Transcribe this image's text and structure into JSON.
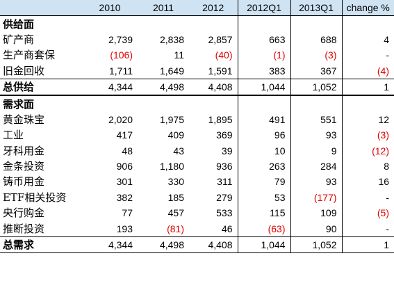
{
  "headers": [
    "",
    "2010",
    "2011",
    "2012",
    "2012Q1",
    "2013Q1",
    "change %"
  ],
  "supply_section": "供给面",
  "supply_rows": [
    {
      "label": "矿产商",
      "v": [
        "2,739",
        "2,838",
        "2,857",
        "663",
        "688",
        "4"
      ],
      "neg": [
        false,
        false,
        false,
        false,
        false,
        false
      ]
    },
    {
      "label": "生产商套保",
      "v": [
        "(106)",
        "11",
        "(40)",
        "(1)",
        "(3)",
        "-"
      ],
      "neg": [
        true,
        false,
        true,
        true,
        true,
        false
      ]
    },
    {
      "label": "旧金回收",
      "v": [
        "1,711",
        "1,649",
        "1,591",
        "383",
        "367",
        "(4)"
      ],
      "neg": [
        false,
        false,
        false,
        false,
        false,
        true
      ]
    }
  ],
  "supply_total": {
    "label": "总供给",
    "v": [
      "4,344",
      "4,498",
      "4,408",
      "1,044",
      "1,052",
      "1"
    ],
    "neg": [
      false,
      false,
      false,
      false,
      false,
      false
    ]
  },
  "demand_section": "需求面",
  "demand_rows": [
    {
      "label": "黄金珠宝",
      "v": [
        "2,020",
        "1,975",
        "1,895",
        "491",
        "551",
        "12"
      ],
      "neg": [
        false,
        false,
        false,
        false,
        false,
        false
      ]
    },
    {
      "label": "工业",
      "v": [
        "417",
        "409",
        "369",
        "96",
        "93",
        "(3)"
      ],
      "neg": [
        false,
        false,
        false,
        false,
        false,
        true
      ]
    },
    {
      "label": "牙科用金",
      "v": [
        "48",
        "43",
        "39",
        "10",
        "9",
        "(12)"
      ],
      "neg": [
        false,
        false,
        false,
        false,
        false,
        true
      ]
    },
    {
      "label": "金条投资",
      "v": [
        "906",
        "1,180",
        "936",
        "263",
        "284",
        "8"
      ],
      "neg": [
        false,
        false,
        false,
        false,
        false,
        false
      ]
    },
    {
      "label": "铸币用金",
      "v": [
        "301",
        "330",
        "311",
        "79",
        "93",
        "16"
      ],
      "neg": [
        false,
        false,
        false,
        false,
        false,
        false
      ]
    },
    {
      "label": "ETF相关投资",
      "v": [
        "382",
        "185",
        "279",
        "53",
        "(177)",
        "-"
      ],
      "neg": [
        false,
        false,
        false,
        false,
        true,
        false
      ]
    },
    {
      "label": "央行购金",
      "v": [
        "77",
        "457",
        "533",
        "115",
        "109",
        "(5)"
      ],
      "neg": [
        false,
        false,
        false,
        false,
        false,
        true
      ]
    },
    {
      "label": "推断投资",
      "v": [
        "193",
        "(81)",
        "46",
        "(63)",
        "90",
        "-"
      ],
      "neg": [
        false,
        true,
        false,
        true,
        false,
        false
      ]
    }
  ],
  "demand_total": {
    "label": "总需求",
    "v": [
      "4,344",
      "4,498",
      "4,408",
      "1,044",
      "1,052",
      "1"
    ],
    "neg": [
      false,
      false,
      false,
      false,
      false,
      false
    ]
  }
}
